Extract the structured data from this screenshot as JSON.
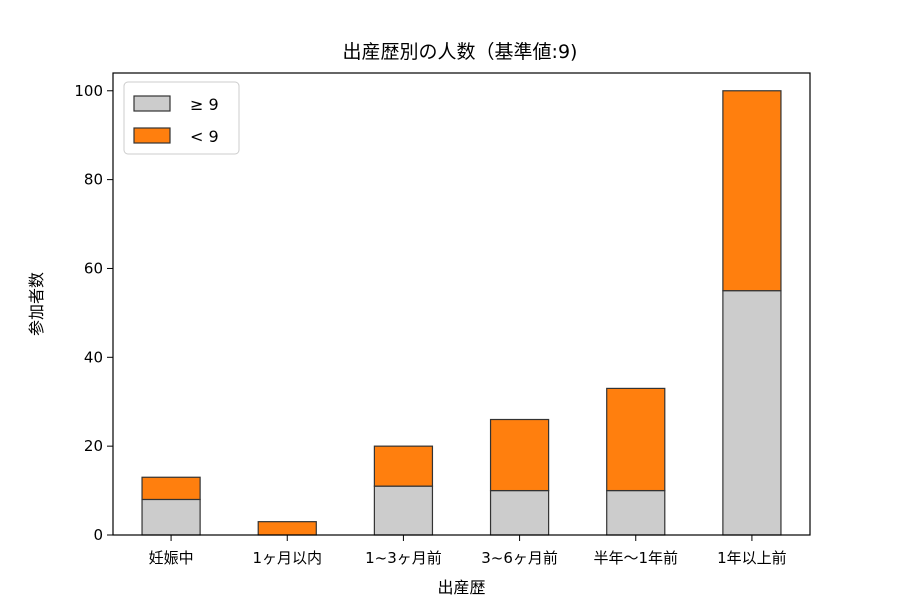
{
  "chart_data": {
    "type": "bar",
    "stacked": true,
    "title": "出産歴別の人数（基準値:9)",
    "xlabel": "出産歴",
    "ylabel": "参加者数",
    "categories": [
      "妊娠中",
      "1ヶ月以内",
      "1~3ヶ月前",
      "3~6ヶ月前",
      "半年〜1年前",
      "1年以上前"
    ],
    "series": [
      {
        "name": "≥ 9",
        "color": "#cccccc",
        "values": [
          8,
          0,
          11,
          10,
          10,
          55
        ]
      },
      {
        "name": "< 9",
        "color": "#ff7f0e",
        "values": [
          5,
          3,
          9,
          16,
          23,
          45
        ]
      }
    ],
    "ylim": [
      0,
      104
    ],
    "yticks": [
      0,
      20,
      40,
      60,
      80,
      100
    ],
    "grid": false,
    "legend_position": "top-left"
  }
}
